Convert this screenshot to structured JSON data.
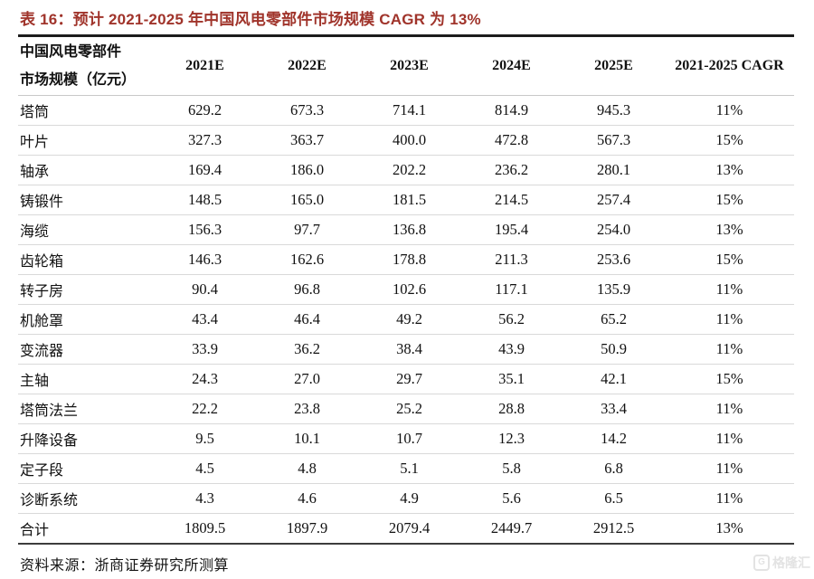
{
  "title": "表 16：预计 2021-2025 年中国风电零部件市场规模 CAGR 为 13%",
  "colors": {
    "title_red": "#A0342B",
    "rule_black": "#1c1c1c",
    "row_line_gray": "#d9d9d9",
    "watermark_gray": "#e3e3e3"
  },
  "table": {
    "header_label_line1": "中国风电零部件",
    "header_label_line2": "市场规模（亿元）",
    "columns": [
      "2021E",
      "2022E",
      "2023E",
      "2024E",
      "2025E",
      "2021-2025 CAGR"
    ],
    "rows": [
      {
        "label": "塔筒",
        "values": [
          "629.2",
          "673.3",
          "714.1",
          "814.9",
          "945.3",
          "11%"
        ]
      },
      {
        "label": "叶片",
        "values": [
          "327.3",
          "363.7",
          "400.0",
          "472.8",
          "567.3",
          "15%"
        ]
      },
      {
        "label": "轴承",
        "values": [
          "169.4",
          "186.0",
          "202.2",
          "236.2",
          "280.1",
          "13%"
        ]
      },
      {
        "label": "铸锻件",
        "values": [
          "148.5",
          "165.0",
          "181.5",
          "214.5",
          "257.4",
          "15%"
        ]
      },
      {
        "label": "海缆",
        "values": [
          "156.3",
          "97.7",
          "136.8",
          "195.4",
          "254.0",
          "13%"
        ]
      },
      {
        "label": "齿轮箱",
        "values": [
          "146.3",
          "162.6",
          "178.8",
          "211.3",
          "253.6",
          "15%"
        ]
      },
      {
        "label": "转子房",
        "values": [
          "90.4",
          "96.8",
          "102.6",
          "117.1",
          "135.9",
          "11%"
        ]
      },
      {
        "label": "机舱罩",
        "values": [
          "43.4",
          "46.4",
          "49.2",
          "56.2",
          "65.2",
          "11%"
        ]
      },
      {
        "label": "变流器",
        "values": [
          "33.9",
          "36.2",
          "38.4",
          "43.9",
          "50.9",
          "11%"
        ]
      },
      {
        "label": "主轴",
        "values": [
          "24.3",
          "27.0",
          "29.7",
          "35.1",
          "42.1",
          "15%"
        ]
      },
      {
        "label": "塔筒法兰",
        "values": [
          "22.2",
          "23.8",
          "25.2",
          "28.8",
          "33.4",
          "11%"
        ]
      },
      {
        "label": "升降设备",
        "values": [
          "9.5",
          "10.1",
          "10.7",
          "12.3",
          "14.2",
          "11%"
        ]
      },
      {
        "label": "定子段",
        "values": [
          "4.5",
          "4.8",
          "5.1",
          "5.8",
          "6.8",
          "11%"
        ]
      },
      {
        "label": "诊断系统",
        "values": [
          "4.3",
          "4.6",
          "4.9",
          "5.6",
          "6.5",
          "11%"
        ]
      },
      {
        "label": "合计",
        "values": [
          "1809.5",
          "1897.9",
          "2079.4",
          "2449.7",
          "2912.5",
          "13%"
        ]
      }
    ]
  },
  "source": "资料来源：浙商证券研究所测算",
  "watermark": {
    "logo_letter": "G",
    "text": "格隆汇"
  }
}
